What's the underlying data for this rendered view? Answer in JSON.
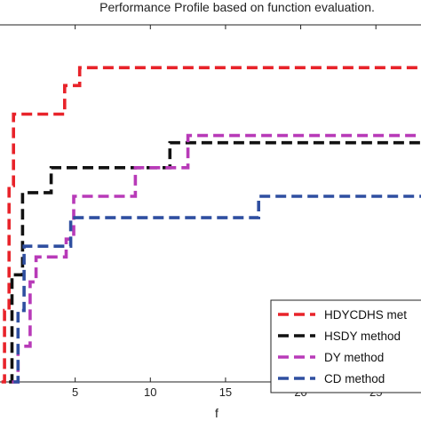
{
  "chart_data": {
    "type": "line",
    "title": "Performance Profile based on function evaluation.",
    "xlabel": "f",
    "ylabel": "",
    "xlim": [
      0,
      28
    ],
    "ylim": [
      0,
      1
    ],
    "xticks": [
      5,
      10,
      15,
      20,
      25
    ],
    "xtick_labels": [
      "5",
      "10",
      "15",
      "20",
      "25"
    ],
    "grid": false,
    "legend_position": "bottom-right",
    "series": [
      {
        "name": "HDYCDHS method",
        "legend_label": "HDYCDHS met",
        "color": "#e8232a",
        "x": [
          0.1,
          0.3,
          0.6,
          0.9,
          2.8,
          4.0,
          4.3,
          4.6,
          5.3,
          5.6,
          28
        ],
        "y": [
          0.0,
          0.2,
          0.55,
          0.75,
          0.75,
          0.75,
          0.83,
          0.83,
          0.88,
          0.88,
          0.88
        ]
      },
      {
        "name": "HSDY method",
        "legend_label": "HSDY method",
        "color": "#111111",
        "x": [
          0.6,
          0.8,
          1.5,
          3.0,
          3.4,
          6.0,
          11.0,
          11.3,
          28
        ],
        "y": [
          0.0,
          0.3,
          0.53,
          0.53,
          0.6,
          0.6,
          0.6,
          0.67,
          0.67
        ]
      },
      {
        "name": "DY method",
        "legend_label": "DY method",
        "color": "#b83ab8",
        "x": [
          0.8,
          1.2,
          2.0,
          2.4,
          4.0,
          4.4,
          4.9,
          8.8,
          9.0,
          11.6,
          12.5,
          28
        ],
        "y": [
          0.0,
          0.1,
          0.28,
          0.35,
          0.35,
          0.4,
          0.52,
          0.52,
          0.6,
          0.6,
          0.69,
          0.69
        ]
      },
      {
        "name": "CD method",
        "legend_label": "CD method",
        "color": "#2f4fa0",
        "x": [
          0.9,
          1.2,
          1.6,
          4.3,
          4.7,
          17.0,
          17.2,
          28
        ],
        "y": [
          0.0,
          0.2,
          0.38,
          0.38,
          0.46,
          0.46,
          0.52,
          0.52
        ]
      }
    ]
  }
}
